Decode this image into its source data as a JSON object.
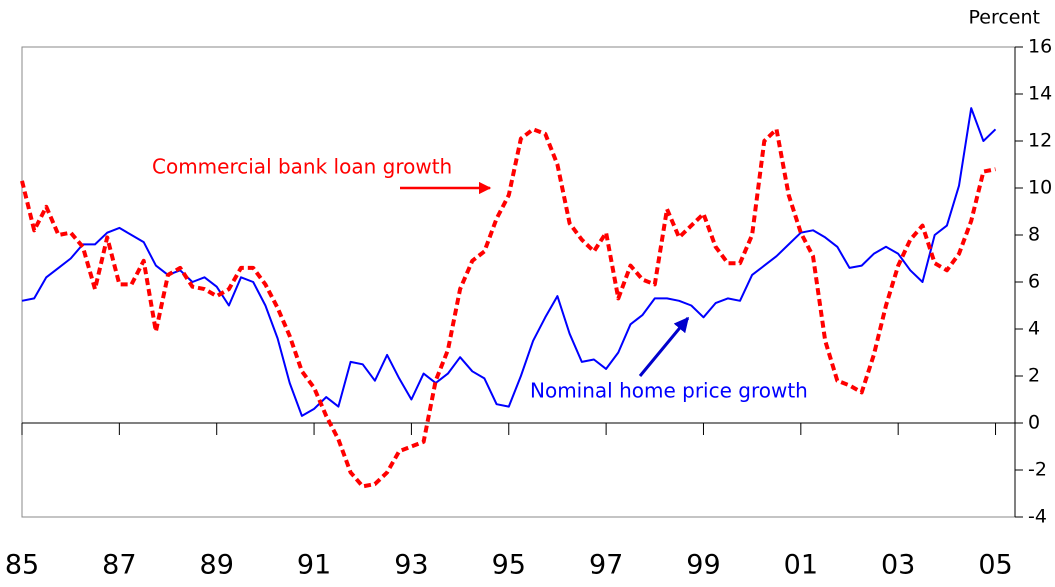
{
  "chart_data": {
    "type": "line",
    "y_axis_label": "Percent",
    "annotations": [
      "Commercial bank loan growth",
      "Nominal home price growth"
    ],
    "x": [
      1985,
      1985.25,
      1985.5,
      1985.75,
      1986,
      1986.25,
      1986.5,
      1986.75,
      1987,
      1987.25,
      1987.5,
      1987.75,
      1988,
      1988.25,
      1988.5,
      1988.75,
      1989,
      1989.25,
      1989.5,
      1989.75,
      1990,
      1990.25,
      1990.5,
      1990.75,
      1991,
      1991.25,
      1991.5,
      1991.75,
      1992,
      1992.25,
      1992.5,
      1992.75,
      1993,
      1993.25,
      1993.5,
      1993.75,
      1994,
      1994.25,
      1994.5,
      1994.75,
      1995,
      1995.25,
      1995.5,
      1995.75,
      1996,
      1996.25,
      1996.5,
      1996.75,
      1997,
      1997.25,
      1997.5,
      1997.75,
      1998,
      1998.25,
      1998.5,
      1998.75,
      1999,
      1999.25,
      1999.5,
      1999.75,
      2000,
      2000.25,
      2000.5,
      2000.75,
      2001,
      2001.25,
      2001.5,
      2001.75,
      2002,
      2002.25,
      2002.5,
      2002.75,
      2003,
      2003.25,
      2003.5,
      2003.75,
      2004,
      2004.25,
      2004.5,
      2004.75,
      2005
    ],
    "series": [
      {
        "name": "Nominal home price growth",
        "color": "#0000ff",
        "dashed": false,
        "values": [
          5.2,
          5.3,
          6.2,
          6.6,
          7.0,
          7.6,
          7.6,
          8.1,
          8.3,
          8.0,
          7.7,
          6.7,
          6.3,
          6.5,
          6.0,
          6.2,
          5.8,
          5.0,
          6.2,
          6.0,
          5.0,
          3.6,
          1.7,
          0.3,
          0.6,
          1.1,
          0.7,
          2.6,
          2.5,
          1.8,
          2.9,
          1.9,
          1.0,
          2.1,
          1.7,
          2.1,
          2.8,
          2.2,
          1.9,
          0.8,
          0.7,
          2.0,
          3.5,
          4.5,
          5.4,
          3.8,
          2.6,
          2.7,
          2.3,
          3.0,
          4.2,
          4.6,
          5.3,
          5.3,
          5.2,
          5.0,
          4.5,
          5.1,
          5.3,
          5.2,
          6.3,
          6.7,
          7.1,
          7.6,
          8.1,
          8.2,
          7.9,
          7.5,
          6.6,
          6.7,
          7.2,
          7.5,
          7.2,
          6.5,
          6.0,
          8.0,
          8.4,
          10.1,
          13.4,
          12.0,
          12.5
        ]
      },
      {
        "name": "Commercial bank loan growth",
        "color": "#ff0000",
        "dashed": true,
        "values": [
          10.3,
          8.2,
          9.2,
          8.0,
          8.1,
          7.5,
          5.7,
          7.9,
          5.9,
          5.9,
          6.9,
          3.9,
          6.3,
          6.6,
          5.8,
          5.7,
          5.4,
          5.7,
          6.6,
          6.6,
          5.9,
          4.9,
          3.7,
          2.2,
          1.5,
          0.3,
          -0.7,
          -2.1,
          -2.7,
          -2.6,
          -2.1,
          -1.2,
          -1.0,
          -0.8,
          1.8,
          3.1,
          5.7,
          6.9,
          7.3,
          8.7,
          9.7,
          12.1,
          12.5,
          12.3,
          11.0,
          8.5,
          7.8,
          7.3,
          8.1,
          5.3,
          6.7,
          6.1,
          5.9,
          9.1,
          7.9,
          8.4,
          8.9,
          7.5,
          6.8,
          6.8,
          8.0,
          12.0,
          12.5,
          9.7,
          8.1,
          7.1,
          3.5,
          1.8,
          1.6,
          1.3,
          2.9,
          5.0,
          6.7,
          7.8,
          8.4,
          6.8,
          6.5,
          7.2,
          8.6,
          10.7,
          10.8
        ]
      }
    ],
    "xlim": [
      1985,
      2005.4
    ],
    "xticks": [
      {
        "value": 1985,
        "label": "85"
      },
      {
        "value": 1987,
        "label": "87"
      },
      {
        "value": 1989,
        "label": "89"
      },
      {
        "value": 1991,
        "label": "91"
      },
      {
        "value": 1993,
        "label": "93"
      },
      {
        "value": 1995,
        "label": "95"
      },
      {
        "value": 1997,
        "label": "97"
      },
      {
        "value": 1999,
        "label": "99"
      },
      {
        "value": 2001,
        "label": "01"
      },
      {
        "value": 2003,
        "label": "03"
      },
      {
        "value": 2005,
        "label": "05"
      }
    ],
    "ylim": [
      -4,
      16
    ],
    "yticks": [
      -4,
      -2,
      0,
      2,
      4,
      6,
      8,
      10,
      12,
      14,
      16
    ],
    "y_axis_side": "right",
    "grid": false
  }
}
